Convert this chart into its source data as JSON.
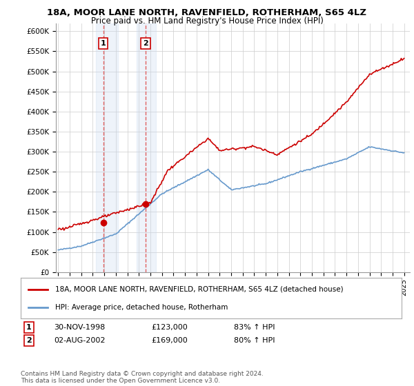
{
  "title": "18A, MOOR LANE NORTH, RAVENFIELD, ROTHERHAM, S65 4LZ",
  "subtitle": "Price paid vs. HM Land Registry's House Price Index (HPI)",
  "title_fontsize": 9.5,
  "subtitle_fontsize": 8.5,
  "background_color": "#ffffff",
  "grid_color": "#cccccc",
  "ylim": [
    0,
    620000
  ],
  "yticks": [
    0,
    50000,
    100000,
    150000,
    200000,
    250000,
    300000,
    350000,
    400000,
    450000,
    500000,
    550000,
    600000
  ],
  "ytick_labels": [
    "£0",
    "£50K",
    "£100K",
    "£150K",
    "£200K",
    "£250K",
    "£300K",
    "£350K",
    "£400K",
    "£450K",
    "£500K",
    "£550K",
    "£600K"
  ],
  "sale1_x": 1998.917,
  "sale1_price": 123000,
  "sale2_x": 2002.583,
  "sale2_price": 169000,
  "legend_line1": "18A, MOOR LANE NORTH, RAVENFIELD, ROTHERHAM, S65 4LZ (detached house)",
  "legend_line2": "HPI: Average price, detached house, Rotherham",
  "footer": "Contains HM Land Registry data © Crown copyright and database right 2024.\nThis data is licensed under the Open Government Licence v3.0.",
  "line_color_red": "#cc0000",
  "line_color_blue": "#6699cc",
  "shade_color": "#c8d8f0",
  "marker_color_red": "#cc0000",
  "x_start_year": 1995,
  "x_end_year": 2025
}
